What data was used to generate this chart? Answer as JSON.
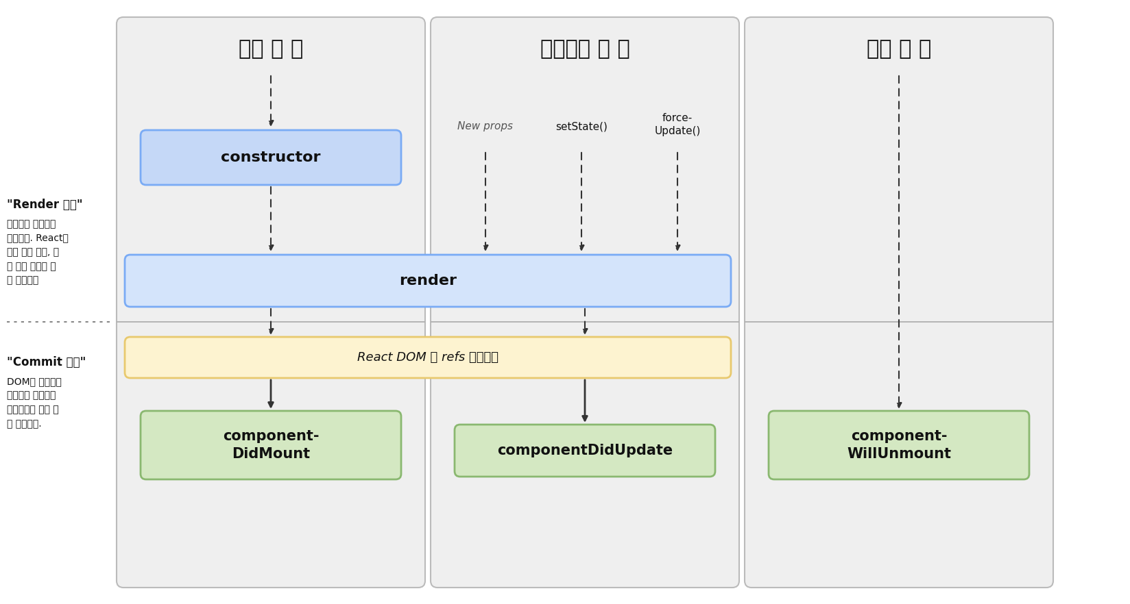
{
  "white": "#ffffff",
  "col1_title": "생성 될 때",
  "col2_title": "업데이트 할 때",
  "col3_title": "제거 할 때",
  "render_label": "render",
  "constructor_label": "constructor",
  "react_dom_label": "React DOM 및 refs 업데이트",
  "componentDidMount_label": "component-\nDidMount",
  "componentDidUpdate_label": "componentDidUpdate",
  "componentWillUnmount_label": "component-\nWillUnmount",
  "new_props_label": "New props",
  "setState_label": "setState()",
  "force_update_label": "force-\nUpdate()",
  "render_phase_title": "\"Render 단계\"",
  "render_phase_desc": "순수하고 부작용이\n없습니다. React에\n의해 일시 중지, 중\n단 또는 재시작 될\n수 있습니다",
  "commit_phase_title": "\"Commit 단계\"",
  "commit_phase_desc": "DOM을 사용하여\n부작용을 실행하고\n업데이트를 예약 할\n수 있습니다.",
  "blue_box_fill": "#c5d8f7",
  "blue_box_edge": "#7aabf5",
  "blue_render_fill": "#d4e4fb",
  "blue_render_edge": "#7aabf5",
  "yellow_box_fill": "#fdf3d0",
  "yellow_box_edge": "#e8c96e",
  "green_box_fill": "#d4e8c2",
  "green_box_edge": "#8ab870",
  "panel_fill": "#efefef",
  "panel_edge": "#bbbbbb",
  "separator_color": "#aaaaaa",
  "arrow_color": "#333333",
  "text_color": "#111111",
  "italic_color": "#555555"
}
